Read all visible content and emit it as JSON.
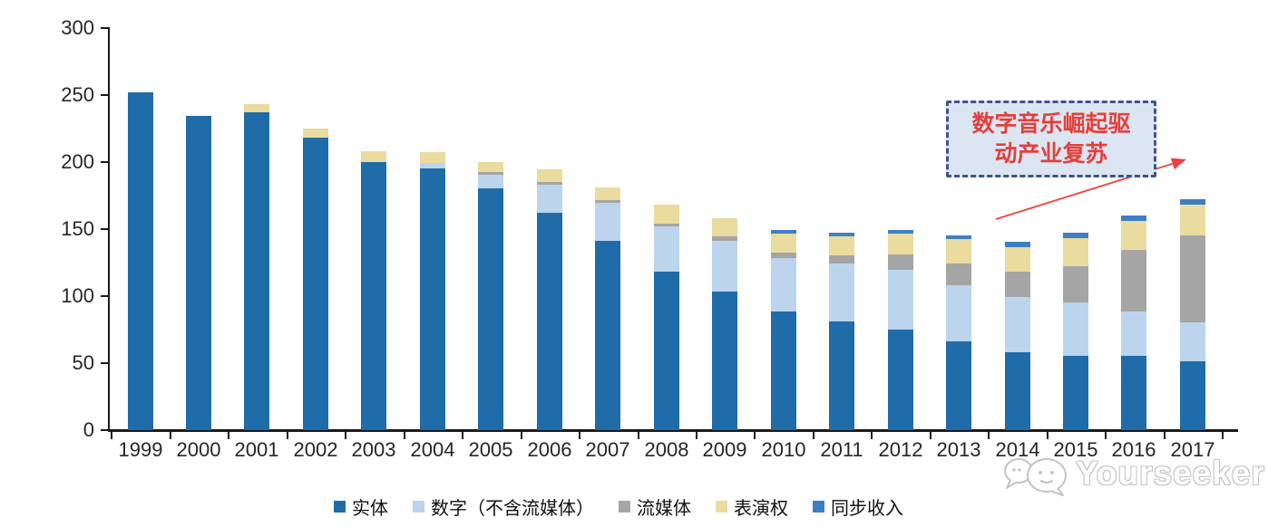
{
  "chart_data": {
    "type": "bar",
    "subtype": "stacked",
    "title": "",
    "xlabel": "",
    "ylabel": "",
    "ylim": [
      0,
      300
    ],
    "y_ticks": [
      0,
      50,
      100,
      150,
      200,
      250,
      300
    ],
    "grid": false,
    "legend_position": "bottom",
    "categories": [
      "1999",
      "2000",
      "2001",
      "2002",
      "2003",
      "2004",
      "2005",
      "2006",
      "2007",
      "2008",
      "2009",
      "2010",
      "2011",
      "2012",
      "2013",
      "2014",
      "2015",
      "2016",
      "2017"
    ],
    "series": [
      {
        "name": "实体",
        "color": "#1F6CA9",
        "values": [
          252,
          234,
          237,
          218,
          200,
          195,
          180,
          162,
          141,
          118,
          103,
          88,
          81,
          75,
          66,
          58,
          55,
          55,
          51
        ]
      },
      {
        "name": "数字（不含流媒体）",
        "color": "#BCD5EC",
        "values": [
          0,
          0,
          0,
          0,
          0,
          4,
          10,
          21,
          28,
          34,
          38,
          40,
          43,
          44,
          42,
          41,
          40,
          33,
          29
        ]
      },
      {
        "name": "流媒体",
        "color": "#A5A5A5",
        "values": [
          0,
          0,
          0,
          0,
          0,
          0,
          2,
          2,
          2,
          2,
          3,
          4,
          6,
          12,
          16,
          19,
          27,
          46,
          65
        ]
      },
      {
        "name": "表演权",
        "color": "#EADB9E",
        "values": [
          0,
          0,
          6,
          7,
          8,
          8,
          8,
          9,
          10,
          14,
          14,
          14,
          14,
          15,
          18,
          18,
          21,
          22,
          23
        ]
      },
      {
        "name": "同步收入",
        "color": "#3E7FC1",
        "values": [
          0,
          0,
          0,
          0,
          0,
          0,
          0,
          0,
          0,
          0,
          0,
          3,
          3,
          3,
          3,
          4,
          4,
          4,
          4
        ]
      }
    ]
  },
  "annotation": {
    "line1": "数字音乐崛起驱",
    "line2": "动产业复苏",
    "text_color": "#E2403C",
    "box_fill": "#DCE6F2",
    "border_color": "#3F5294",
    "arrow_color": "#E8433F"
  },
  "watermark": {
    "text": "Yourseeker"
  }
}
